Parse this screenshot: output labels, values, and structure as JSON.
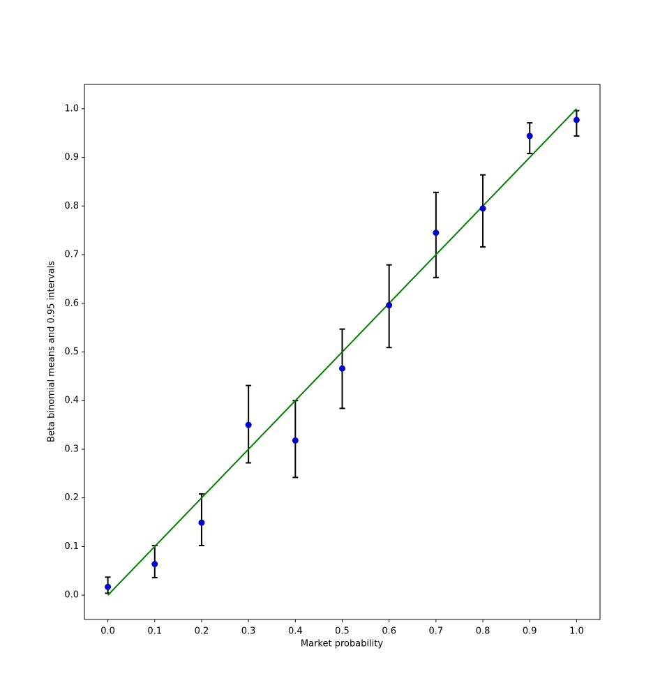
{
  "chart_data": {
    "type": "scatter",
    "x_label": "Market probability",
    "y_label": "Beta binomial means and 0.95 intervals",
    "x": [
      0,
      0.1,
      0.2,
      0.3,
      0.4,
      0.5,
      0.6,
      0.7,
      0.8,
      0.9,
      1
    ],
    "values": [
      0.017,
      0.064,
      0.149,
      0.35,
      0.318,
      0.466,
      0.596,
      0.745,
      0.795,
      0.944,
      0.977
    ],
    "lower": [
      0.004,
      0.036,
      0.102,
      0.272,
      0.242,
      0.384,
      0.509,
      0.653,
      0.716,
      0.908,
      0.944
    ],
    "upper": [
      0.037,
      0.102,
      0.208,
      0.431,
      0.4,
      0.547,
      0.679,
      0.828,
      0.864,
      0.971,
      0.996
    ],
    "color": "#0000cc",
    "error_color": "#000000",
    "reference_line": {
      "x": [
        0,
        1
      ],
      "values": [
        0,
        1
      ],
      "color": "#008000"
    },
    "xlim": [
      -0.05,
      1.05
    ],
    "ylim": [
      -0.05,
      1.05
    ],
    "xticks": [
      {
        "value": 0,
        "label": "0.0"
      },
      0.1,
      0.2,
      0.3,
      0.4,
      0.5,
      0.6,
      0.7,
      0.8,
      0.9,
      {
        "value": 1,
        "label": "1.0"
      }
    ],
    "yticks": [
      {
        "value": 0,
        "label": "0.0"
      },
      0.1,
      0.2,
      0.3,
      0.4,
      0.5,
      0.6,
      0.7,
      0.8,
      0.9,
      {
        "value": 1,
        "label": "1.0"
      }
    ],
    "grid": false
  }
}
